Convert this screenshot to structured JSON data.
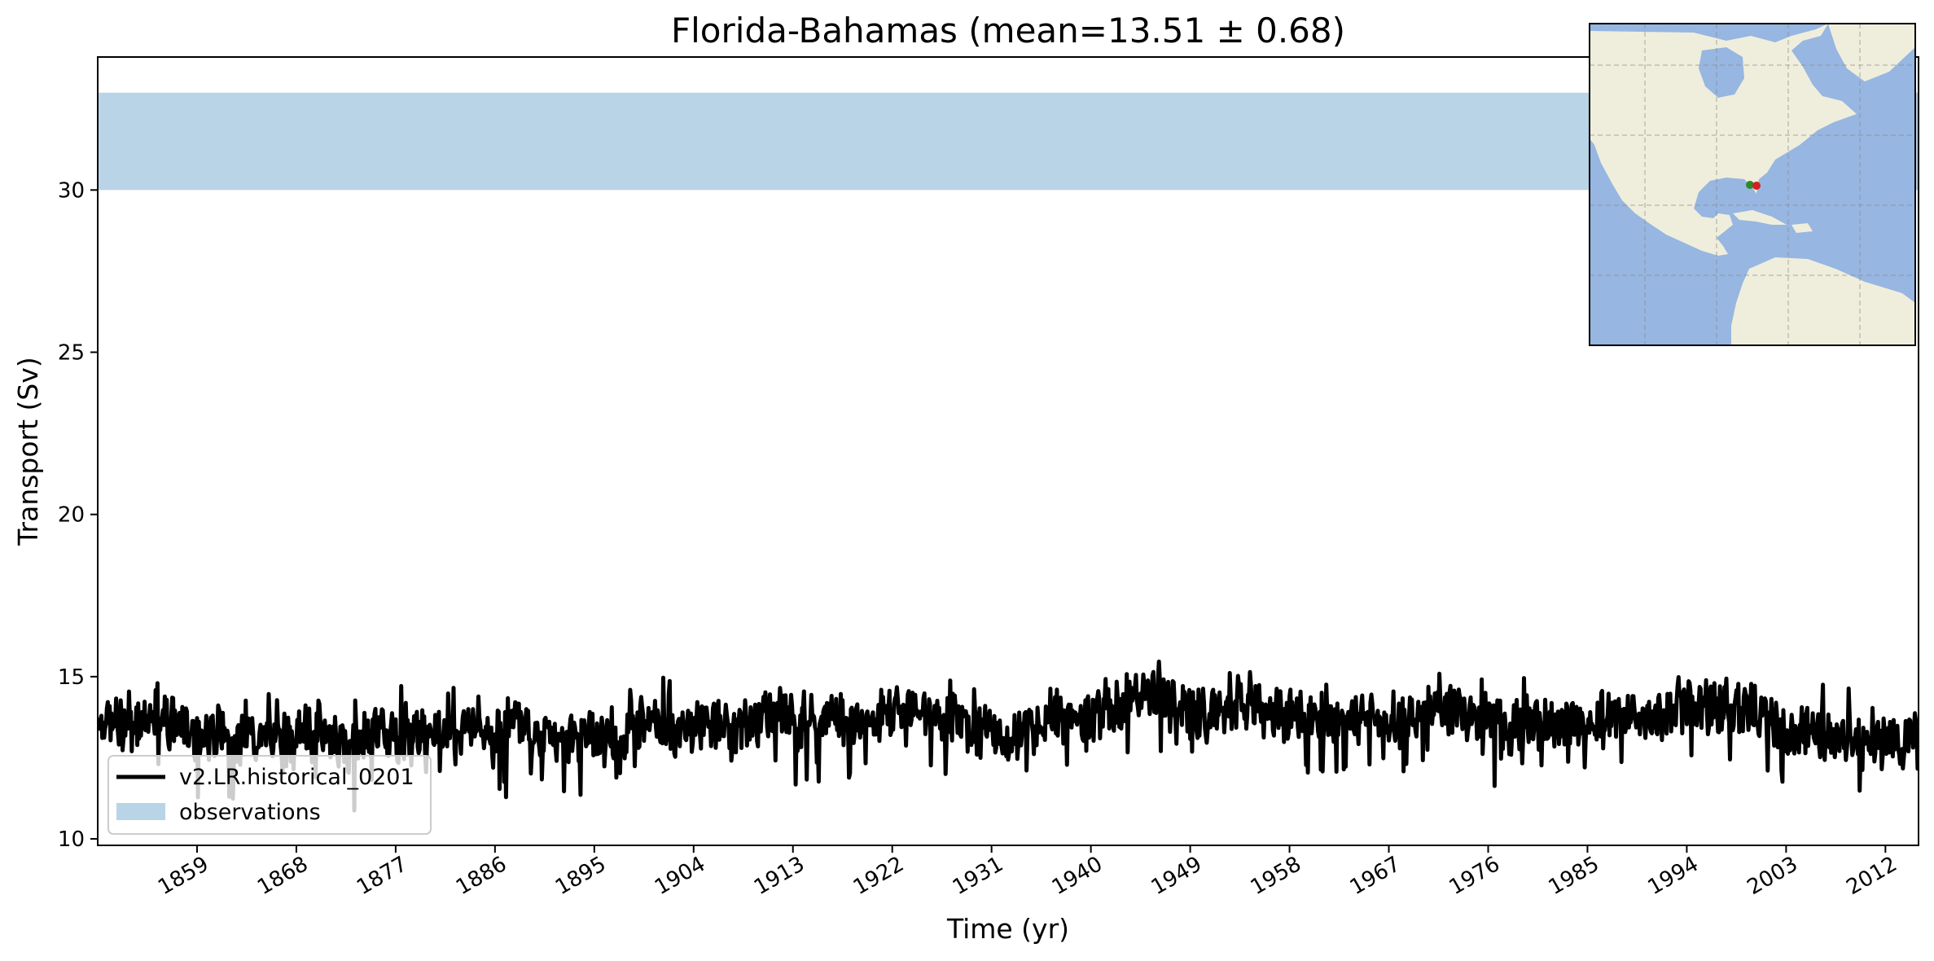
{
  "chart_data": {
    "type": "line",
    "title": "Florida-Bahamas (mean=13.51 ± 0.68)",
    "xlabel": "Time (yr)",
    "ylabel": "Transport (Sv)",
    "xlim": [
      1850,
      2015
    ],
    "ylim": [
      9.8,
      34.1
    ],
    "xticks": [
      1859,
      1868,
      1877,
      1886,
      1895,
      1904,
      1913,
      1922,
      1931,
      1940,
      1949,
      1958,
      1967,
      1976,
      1985,
      1994,
      2003,
      2012
    ],
    "yticks": [
      10,
      15,
      20,
      25,
      30
    ],
    "legend_location": "lower-left",
    "grid": false,
    "series": [
      {
        "name": "v2.LR.historical_0201",
        "color": "#000000",
        "annual_values": [
          13.7,
          13.5,
          13.6,
          13.4,
          13.6,
          13.7,
          13.6,
          13.5,
          13.3,
          13.4,
          13.2,
          13.1,
          13.0,
          13.2,
          13.1,
          13.3,
          13.2,
          13.0,
          13.3,
          13.2,
          13.4,
          13.1,
          12.9,
          13.0,
          13.2,
          13.4,
          13.2,
          13.1,
          13.3,
          13.4,
          13.5,
          13.3,
          13.2,
          13.6,
          13.5,
          13.4,
          13.3,
          13.5,
          13.6,
          13.4,
          13.2,
          13.1,
          13.0,
          13.2,
          13.3,
          13.1,
          13.0,
          13.2,
          13.4,
          13.5,
          13.6,
          13.4,
          13.3,
          13.5,
          13.6,
          13.7,
          13.5,
          13.3,
          13.5,
          13.7,
          13.8,
          13.9,
          13.8,
          13.6,
          13.7,
          13.8,
          13.9,
          13.7,
          13.6,
          13.5,
          13.7,
          13.9,
          14.1,
          14.2,
          14.0,
          13.8,
          13.6,
          13.7,
          13.5,
          13.4,
          13.3,
          13.2,
          13.1,
          13.3,
          13.5,
          13.7,
          13.8,
          13.6,
          13.7,
          13.8,
          13.9,
          14.0,
          14.1,
          14.2,
          14.3,
          14.4,
          14.2,
          14.1,
          14.0,
          13.9,
          13.8,
          13.9,
          14.0,
          14.1,
          14.0,
          13.9,
          13.8,
          13.7,
          13.8,
          13.9,
          13.8,
          13.7,
          13.6,
          13.7,
          13.8,
          13.9,
          13.8,
          13.7,
          13.6,
          13.7,
          13.9,
          14.0,
          14.1,
          14.0,
          13.8,
          13.7,
          13.6,
          13.5,
          13.6,
          13.7,
          13.6,
          13.5,
          13.4,
          13.5,
          13.6,
          13.7,
          13.8,
          13.9,
          13.7,
          13.6,
          13.7,
          13.8,
          13.9,
          14.0,
          14.1,
          14.0,
          14.1,
          14.2,
          14.1,
          14.0,
          13.9,
          13.6,
          13.5,
          13.3,
          13.4,
          13.2,
          13.1,
          13.0,
          13.1,
          12.9,
          12.9,
          13.0,
          13.0,
          12.9,
          13.0,
          12.8,
          13.0
        ]
      }
    ],
    "observations": {
      "name": "observations",
      "color": "#b9d4e7",
      "range": [
        30,
        33
      ]
    }
  },
  "inset_map": {
    "ocean_color": "#97b6e1",
    "land_color": "#efeedc",
    "markers": [
      {
        "name": "start",
        "color": "#2a8a2a"
      },
      {
        "name": "end",
        "color": "#d62020"
      }
    ]
  }
}
